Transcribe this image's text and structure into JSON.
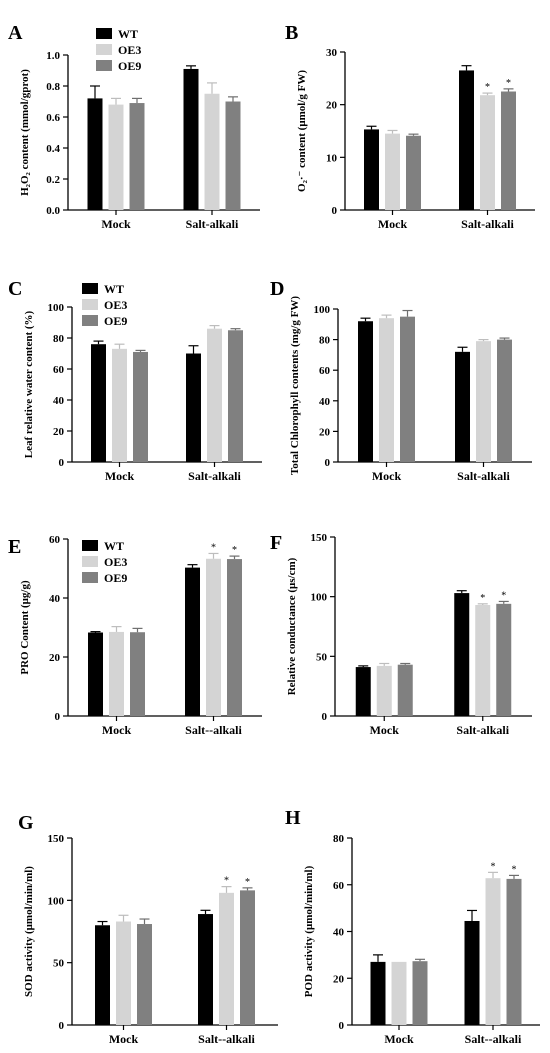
{
  "colors": {
    "WT": "#000000",
    "OE3": "#d4d4d4",
    "OE9": "#808080"
  },
  "legend_labels": [
    "WT",
    "OE3",
    "OE9"
  ],
  "chart_data": [
    {
      "panel": "A",
      "type": "bar",
      "ylabel": "H₂O₂ content (mmol/gprot)",
      "yticks": [
        "0.0",
        "0.2",
        "0.4",
        "0.6",
        "0.8",
        "1.0"
      ],
      "ylim": [
        0,
        1.0
      ],
      "categories": [
        "Mock",
        "Salt-alkali"
      ],
      "legend": true,
      "series": [
        {
          "name": "WT",
          "values": [
            0.72,
            0.91
          ],
          "errors": [
            0.08,
            0.02
          ]
        },
        {
          "name": "OE3",
          "values": [
            0.68,
            0.75
          ],
          "errors": [
            0.04,
            0.07
          ]
        },
        {
          "name": "OE9",
          "values": [
            0.69,
            0.7
          ],
          "errors": [
            0.03,
            0.03
          ]
        }
      ],
      "stars": []
    },
    {
      "panel": "B",
      "type": "bar",
      "ylabel": "O₂·⁻ content (μmol/g FW)",
      "yticks": [
        "0",
        "10",
        "20",
        "30"
      ],
      "ylim": [
        0,
        30
      ],
      "categories": [
        "Mock",
        "Salt-alkali"
      ],
      "legend": false,
      "series": [
        {
          "name": "WT",
          "values": [
            15.3,
            26.5
          ],
          "errors": [
            0.6,
            0.9
          ]
        },
        {
          "name": "OE3",
          "values": [
            14.5,
            21.8
          ],
          "errors": [
            0.6,
            0.4
          ]
        },
        {
          "name": "OE9",
          "values": [
            14.1,
            22.5
          ],
          "errors": [
            0.3,
            0.5
          ]
        }
      ],
      "stars": [
        "*",
        "*"
      ]
    },
    {
      "panel": "C",
      "type": "bar",
      "ylabel": "Leaf relative water content (%)",
      "yticks": [
        "0",
        "20",
        "40",
        "60",
        "80",
        "100"
      ],
      "ylim": [
        0,
        100
      ],
      "categories": [
        "Mock",
        "Salt-alkali"
      ],
      "legend": true,
      "series": [
        {
          "name": "WT",
          "values": [
            76,
            70
          ],
          "errors": [
            2,
            5
          ]
        },
        {
          "name": "OE3",
          "values": [
            73,
            86
          ],
          "errors": [
            3,
            2
          ]
        },
        {
          "name": "OE9",
          "values": [
            71,
            85
          ],
          "errors": [
            1,
            1
          ]
        }
      ],
      "stars": []
    },
    {
      "panel": "D",
      "type": "bar",
      "ylabel": "Total Chlorophyll contents (mg/g FW)",
      "yticks": [
        "0",
        "20",
        "40",
        "60",
        "80",
        "100"
      ],
      "ylim": [
        0,
        100
      ],
      "categories": [
        "Mock",
        "Salt-alkali"
      ],
      "legend": false,
      "series": [
        {
          "name": "WT",
          "values": [
            92,
            72
          ],
          "errors": [
            2,
            3
          ]
        },
        {
          "name": "OE3",
          "values": [
            94,
            79
          ],
          "errors": [
            2,
            1
          ]
        },
        {
          "name": "OE9",
          "values": [
            95,
            80
          ],
          "errors": [
            4,
            1
          ]
        }
      ],
      "stars": []
    },
    {
      "panel": "E",
      "type": "bar",
      "ylabel": "PRO Content (μg/g)",
      "yticks": [
        "0",
        "20",
        "40",
        "60"
      ],
      "ylim": [
        0,
        60
      ],
      "categories": [
        "Mock",
        "Salt--alkali"
      ],
      "legend": true,
      "series": [
        {
          "name": "WT",
          "values": [
            28.3,
            50.3
          ],
          "errors": [
            0.3,
            1.0
          ]
        },
        {
          "name": "OE3",
          "values": [
            28.5,
            53.3
          ],
          "errors": [
            1.8,
            1.8
          ]
        },
        {
          "name": "OE9",
          "values": [
            28.4,
            53.2
          ],
          "errors": [
            1.3,
            1.0
          ]
        }
      ],
      "stars": [
        "*",
        "*"
      ]
    },
    {
      "panel": "F",
      "type": "bar",
      "ylabel": "Relative conductance (μs/cm)",
      "yticks": [
        "0",
        "50",
        "100",
        "150"
      ],
      "ylim": [
        0,
        150
      ],
      "categories": [
        "Mock",
        "Salt-alkali"
      ],
      "legend": false,
      "series": [
        {
          "name": "WT",
          "values": [
            41,
            103
          ],
          "errors": [
            1,
            2
          ]
        },
        {
          "name": "OE3",
          "values": [
            42,
            93
          ],
          "errors": [
            2,
            1
          ]
        },
        {
          "name": "OE9",
          "values": [
            43,
            94
          ],
          "errors": [
            1,
            2
          ]
        }
      ],
      "stars": [
        "*",
        "*"
      ]
    },
    {
      "panel": "G",
      "type": "bar",
      "ylabel": "SOD activity (μmol/min/ml)",
      "yticks": [
        "0",
        "50",
        "100",
        "150"
      ],
      "ylim": [
        0,
        150
      ],
      "categories": [
        "Mock",
        "Salt--alkali"
      ],
      "legend": false,
      "series": [
        {
          "name": "WT",
          "values": [
            80,
            89
          ],
          "errors": [
            3,
            3
          ]
        },
        {
          "name": "OE3",
          "values": [
            83,
            106
          ],
          "errors": [
            5,
            5
          ]
        },
        {
          "name": "OE9",
          "values": [
            81,
            108
          ],
          "errors": [
            4,
            2
          ]
        }
      ],
      "stars": [
        "*",
        "*"
      ]
    },
    {
      "panel": "H",
      "type": "bar",
      "ylabel": "POD activity (μmol/min/ml)",
      "yticks": [
        "0",
        "20",
        "40",
        "60",
        "80"
      ],
      "ylim": [
        0,
        80
      ],
      "categories": [
        "Mock",
        "Salt--alkali"
      ],
      "legend": false,
      "series": [
        {
          "name": "WT",
          "values": [
            27,
            44.5
          ],
          "errors": [
            3,
            4.5
          ]
        },
        {
          "name": "OE3",
          "values": [
            27,
            62.8
          ],
          "errors": [
            0,
            2.5
          ]
        },
        {
          "name": "OE9",
          "values": [
            27.3,
            62.5
          ],
          "errors": [
            0.8,
            1.5
          ]
        }
      ],
      "stars": [
        "*",
        "*"
      ]
    }
  ]
}
